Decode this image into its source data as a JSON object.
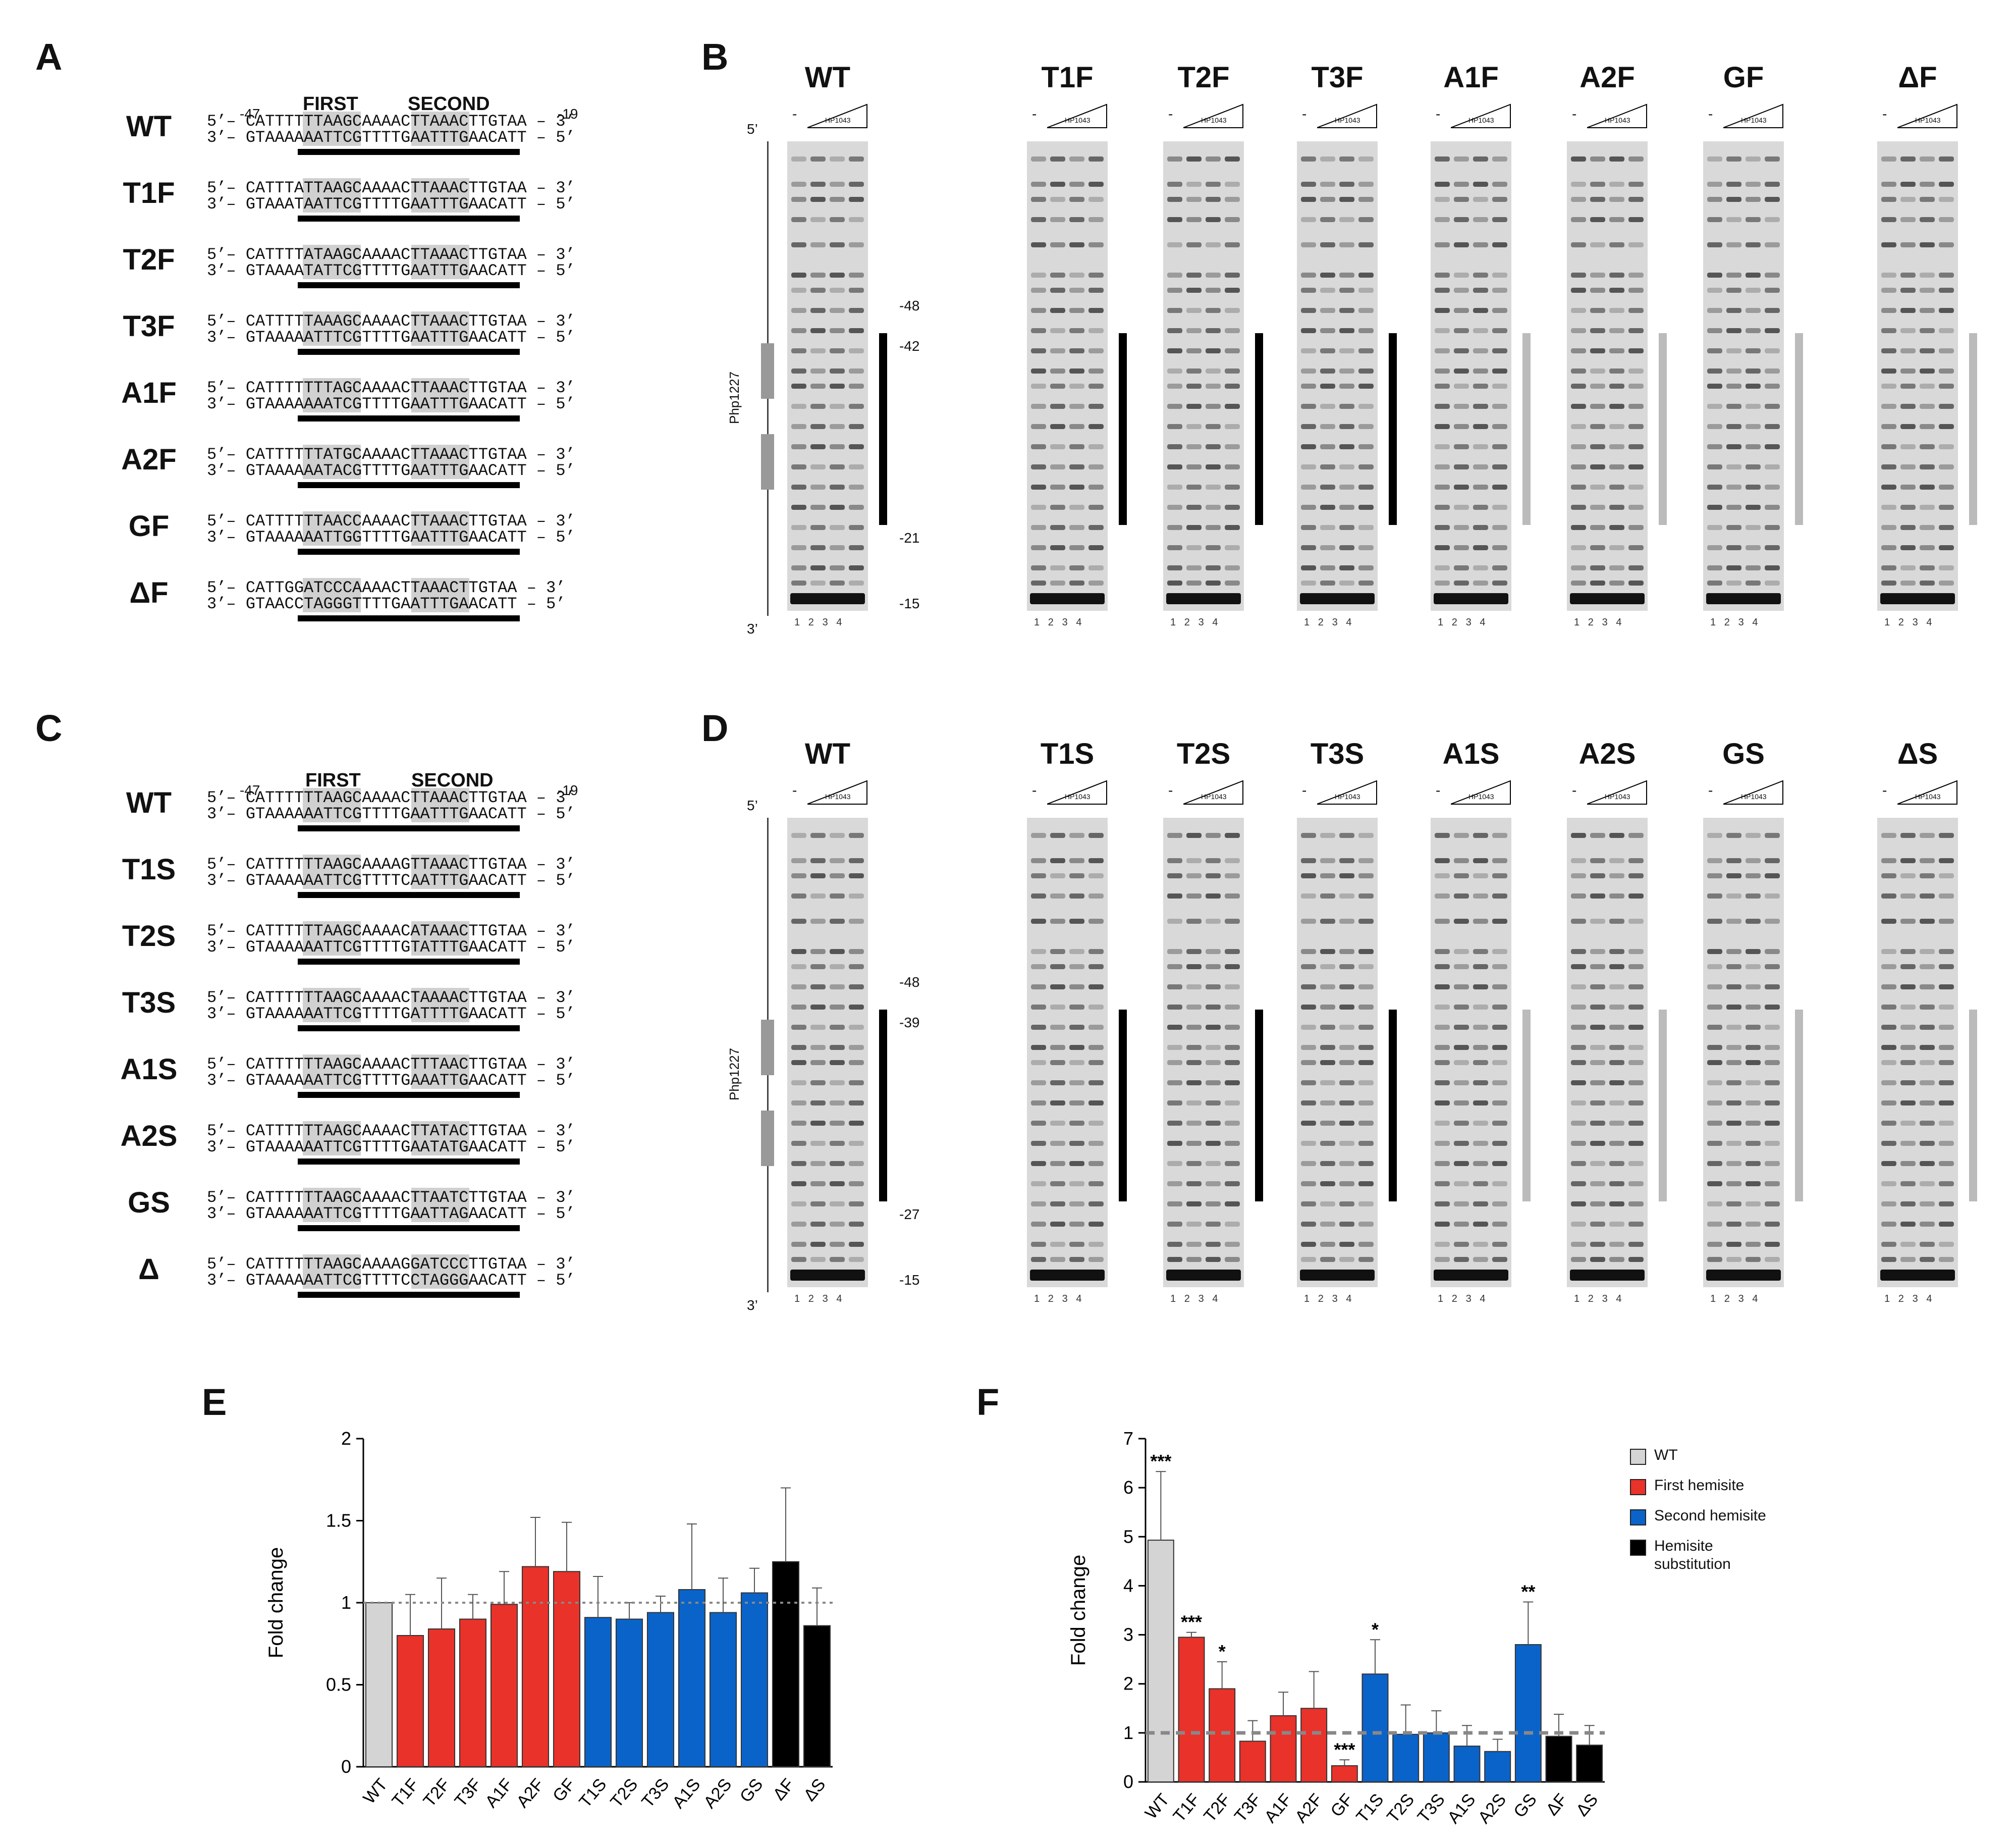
{
  "panel_letters": {
    "A": "A",
    "B": "B",
    "C": "C",
    "D": "D",
    "E": "E",
    "F": "F"
  },
  "panelA": {
    "coord_left": "-47",
    "coord_right": "-19",
    "first_label": "FIRST",
    "second_label": "SECOND",
    "rows": [
      {
        "label": "WT",
        "top": "5’– CATTTTTTAAGCAAAACTTAAACTTGTAA – 3’",
        "bottom": "3’– GTAAAAAATTCGTTTTGAATTTGAACATT – 5’"
      },
      {
        "label": "T1F",
        "top": "5’– CATTTATTAAGCAAAACTTAAACTTGTAA – 3’",
        "bottom": "3’– GTAAATAATTCGTTTTGAATTTGAACATT – 5’"
      },
      {
        "label": "T2F",
        "top": "5’– CATTTTATAAGCAAAACTTAAACTTGTAA – 3’",
        "bottom": "3’– GTAAAATATTCGTTTTGAATTTGAACATT – 5’"
      },
      {
        "label": "T3F",
        "top": "5’– CATTTTTAAAGCAAAACTTAAACTTGTAA – 3’",
        "bottom": "3’– GTAAAAATTTCGTTTTGAATTTGAACATT – 5’"
      },
      {
        "label": "A1F",
        "top": "5’– CATTTTTTTAGCAAAACTTAAACTTGTAA – 3’",
        "bottom": "3’– GTAAAAAAATCGTTTTGAATTTGAACATT – 5’"
      },
      {
        "label": "A2F",
        "top": "5’– CATTTTTTATGCAAAACTTAAACTTGTAA – 3’",
        "bottom": "3’– GTAAAAAATACGTTTTGAATTTGAACATT – 5’"
      },
      {
        "label": "GF",
        "top": "5’– CATTTTTTAACCAAAACTTAAACTTGTAA – 3’",
        "bottom": "3’– GTAAAAAATTGGTTTTGAATTTGAACATT – 5’"
      },
      {
        "label": "ΔF",
        "top": "5’– CATTGGATCCCAAAACTTAAACTTGTAA – 3’",
        "bottom": "3’– GTAACCTAGGGTTTTGAATTTGAACATT – 5’"
      }
    ]
  },
  "panelC": {
    "coord_left": "-47",
    "coord_right": "-19",
    "first_label": "FIRST",
    "second_label": "SECOND",
    "rows": [
      {
        "label": "WT",
        "top": "5’– CATTTTTTAAGCAAAACTTAAACTTGTAA – 3’",
        "bottom": "3’– GTAAAAAATTCGTTTTGAATTTGAACATT – 5’"
      },
      {
        "label": "T1S",
        "top": "5’– CATTTTTTAAGCAAAAGTTAAACTTGTAA – 3’",
        "bottom": "3’– GTAAAAAATTCGTTTTCAATTTGAACATT – 5’"
      },
      {
        "label": "T2S",
        "top": "5’– CATTTTTTAAGCAAAACATAAACTTGTAA – 3’",
        "bottom": "3’– GTAAAAAATTCGTTTTGTATTTGAACATT – 5’"
      },
      {
        "label": "T3S",
        "top": "5’– CATTTTTTAAGCAAAACTAAAACTTGTAA – 3’",
        "bottom": "3’– GTAAAAAATTCGTTTTGATTTTGAACATT – 5’"
      },
      {
        "label": "A1S",
        "top": "5’– CATTTTTTAAGCAAAACTTTAACTTGTAA – 3’",
        "bottom": "3’– GTAAAAAATTCGTTTTGAAATTGAACATT – 5’"
      },
      {
        "label": "A2S",
        "top": "5’– CATTTTTTAAGCAAAACTTATACTTGTAA – 3’",
        "bottom": "3’– GTAAAAAATTCGTTTTGAATATGAACATT – 5’"
      },
      {
        "label": "GS",
        "top": "5’– CATTTTTTAAGCAAAACTTAATCTTGTAA – 3’",
        "bottom": "3’– GTAAAAAATTCGTTTTGAATTAGAACATT – 5’"
      },
      {
        "label": "Δ",
        "top": "5’– CATTTTTTAAGCAAAAGGATCCCTTGTAA – 3’",
        "bottom": "3’– GTAAAAAATTCGTTTTCCTAGGGAACATT – 5’"
      }
    ]
  },
  "gels_B": [
    "WT",
    "T1F",
    "T2F",
    "T3F",
    "A1F",
    "A2F",
    "GF",
    "ΔF"
  ],
  "gels_D": [
    "WT",
    "T1S",
    "T2S",
    "T3S",
    "A1S",
    "A2S",
    "GS",
    "ΔS"
  ],
  "gel_common": {
    "lane_numbers": "1   2   3   4",
    "dash": "-",
    "protein": "HP1043",
    "five_prime": "5’",
    "three_prime": "3’",
    "promoter": "Php1227",
    "asterisk": "*"
  },
  "gel_markers_B": {
    "m48": "-48",
    "m42": "-42",
    "m21": "-21",
    "m15": "-15"
  },
  "gel_markers_D": {
    "m48": "-48",
    "m39": "-39",
    "m27": "-27",
    "m15": "-15"
  },
  "legend": {
    "wt": "WT",
    "first": "First hemisite",
    "second": "Second hemisite",
    "subst_line1": "Hemisite",
    "subst_line2": "substitution"
  },
  "colors": {
    "wt": "#d4d4d4",
    "first": "#e8322a",
    "second": "#0a63c9",
    "subst": "#000000",
    "highlight": "#f4a6a6",
    "grey_box": "#cccccc"
  },
  "chart_data": [
    {
      "type": "bar",
      "panel": "E",
      "categories": [
        "WT",
        "T1F",
        "T2F",
        "T3F",
        "A1F",
        "A2F",
        "GF",
        "T1S",
        "T2S",
        "T3S",
        "A1S",
        "A2S",
        "GS",
        "ΔF",
        "ΔS"
      ],
      "values": [
        1.0,
        0.8,
        0.84,
        0.9,
        0.99,
        1.22,
        1.19,
        0.91,
        0.9,
        0.94,
        1.08,
        0.94,
        1.06,
        1.25,
        0.86
      ],
      "errors": [
        0.0,
        0.25,
        0.31,
        0.15,
        0.2,
        0.3,
        0.3,
        0.25,
        0.1,
        0.1,
        0.4,
        0.21,
        0.15,
        0.45,
        0.23
      ],
      "groups": [
        "wt",
        "first",
        "first",
        "first",
        "first",
        "first",
        "first",
        "second",
        "second",
        "second",
        "second",
        "second",
        "second",
        "subst",
        "subst"
      ],
      "ylabel": "Fold change",
      "ylim": [
        0,
        2
      ],
      "yticks": [
        "0",
        "0.5",
        "1",
        "1.5",
        "2"
      ],
      "reference_line": 1
    },
    {
      "type": "bar",
      "panel": "F",
      "categories": [
        "WT",
        "T1F",
        "T2F",
        "T3F",
        "A1F",
        "A2F",
        "GF",
        "T1S",
        "T2S",
        "T3S",
        "A1S",
        "A2S",
        "GS",
        "ΔF",
        "ΔS"
      ],
      "values": [
        4.93,
        2.95,
        1.9,
        0.83,
        1.35,
        1.5,
        0.33,
        2.2,
        0.97,
        1.0,
        0.73,
        0.62,
        2.8,
        0.93,
        0.75
      ],
      "errors": [
        1.4,
        0.1,
        0.55,
        0.42,
        0.48,
        0.75,
        0.12,
        0.7,
        0.6,
        0.45,
        0.42,
        0.25,
        0.87,
        0.45,
        0.4
      ],
      "groups": [
        "wt",
        "first",
        "first",
        "first",
        "first",
        "first",
        "first",
        "second",
        "second",
        "second",
        "second",
        "second",
        "second",
        "subst",
        "subst"
      ],
      "significance": [
        "***",
        "***",
        "*",
        "",
        "",
        "",
        "***",
        "*",
        "",
        "",
        "",
        "",
        "**",
        "",
        ""
      ],
      "ylabel": "Fold change",
      "ylim": [
        0,
        7
      ],
      "yticks": [
        "0",
        "1",
        "2",
        "3",
        "4",
        "5",
        "6",
        "7"
      ],
      "reference_line": 1
    }
  ]
}
